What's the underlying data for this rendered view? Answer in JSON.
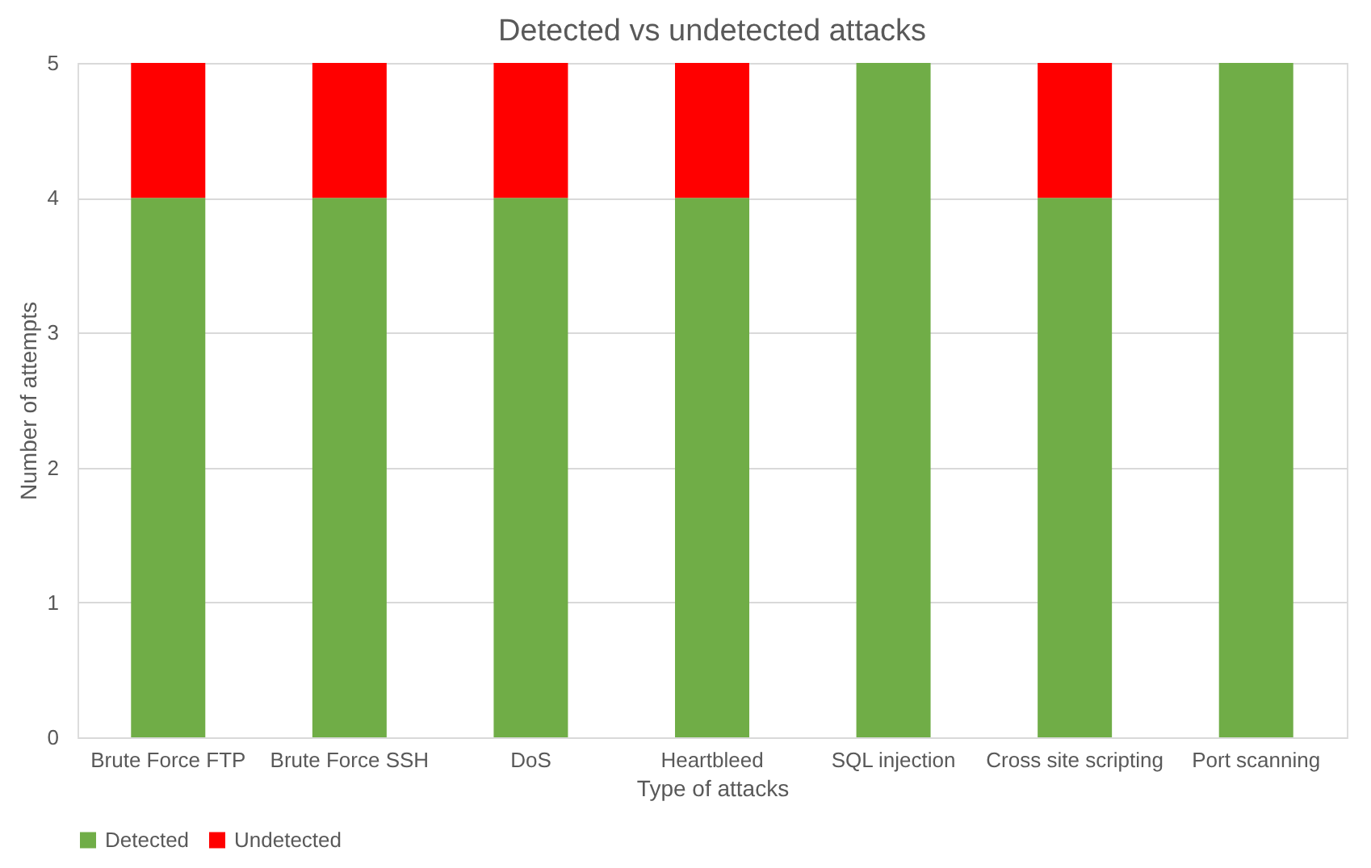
{
  "chart_data": {
    "type": "bar",
    "title": "Detected vs undetected attacks",
    "xlabel": "Type of attacks",
    "ylabel": "Number of attempts",
    "categories": [
      "Brute Force FTP",
      "Brute Force SSH",
      "DoS",
      "Heartbleed",
      "SQL injection",
      "Cross site scripting",
      "Port scanning"
    ],
    "series": [
      {
        "name": "Detected",
        "color": "#70ad47",
        "values": [
          4,
          4,
          4,
          4,
          5,
          4,
          5
        ]
      },
      {
        "name": "Undetected",
        "color": "#ff0000",
        "values": [
          1,
          1,
          1,
          1,
          0,
          1,
          0
        ]
      }
    ],
    "stacked": true,
    "ylim": [
      0,
      5
    ],
    "yticks": [
      0,
      1,
      2,
      3,
      4,
      5
    ],
    "grid": "y",
    "legend": "bottom"
  }
}
